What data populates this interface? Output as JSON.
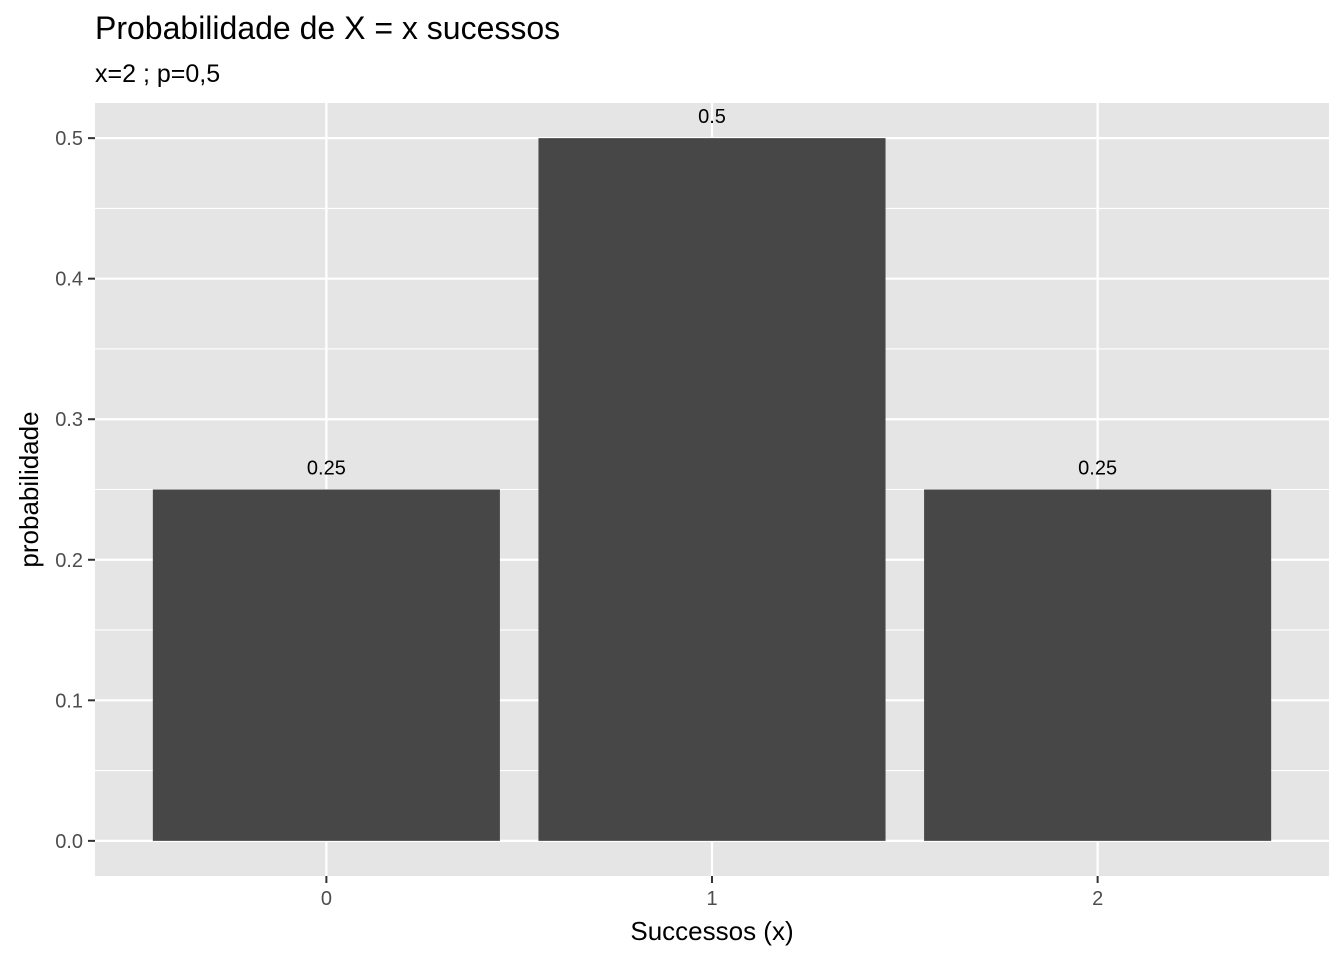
{
  "chart_data": {
    "type": "bar",
    "title": "Probabilidade de X = x sucessos",
    "subtitle": "x=2 ; p=0,5",
    "xlabel": "Successos (x)",
    "ylabel": "probabilidade",
    "categories": [
      "0",
      "1",
      "2"
    ],
    "values": [
      0.25,
      0.5,
      0.25
    ],
    "data_labels": [
      "0.25",
      "0.5",
      "0.25"
    ],
    "y_ticks": [
      0.0,
      0.1,
      0.2,
      0.3,
      0.4,
      0.5
    ],
    "y_tick_labels": [
      "0.0",
      "0.1",
      "0.2",
      "0.3",
      "0.4",
      "0.5"
    ],
    "ylim": [
      -0.025,
      0.525
    ],
    "grid": true,
    "legend": "none",
    "colors": {
      "panel_background": "#e5e5e5",
      "grid": "#ffffff",
      "bar_fill": "#474747",
      "tick_mark": "#333333"
    }
  }
}
